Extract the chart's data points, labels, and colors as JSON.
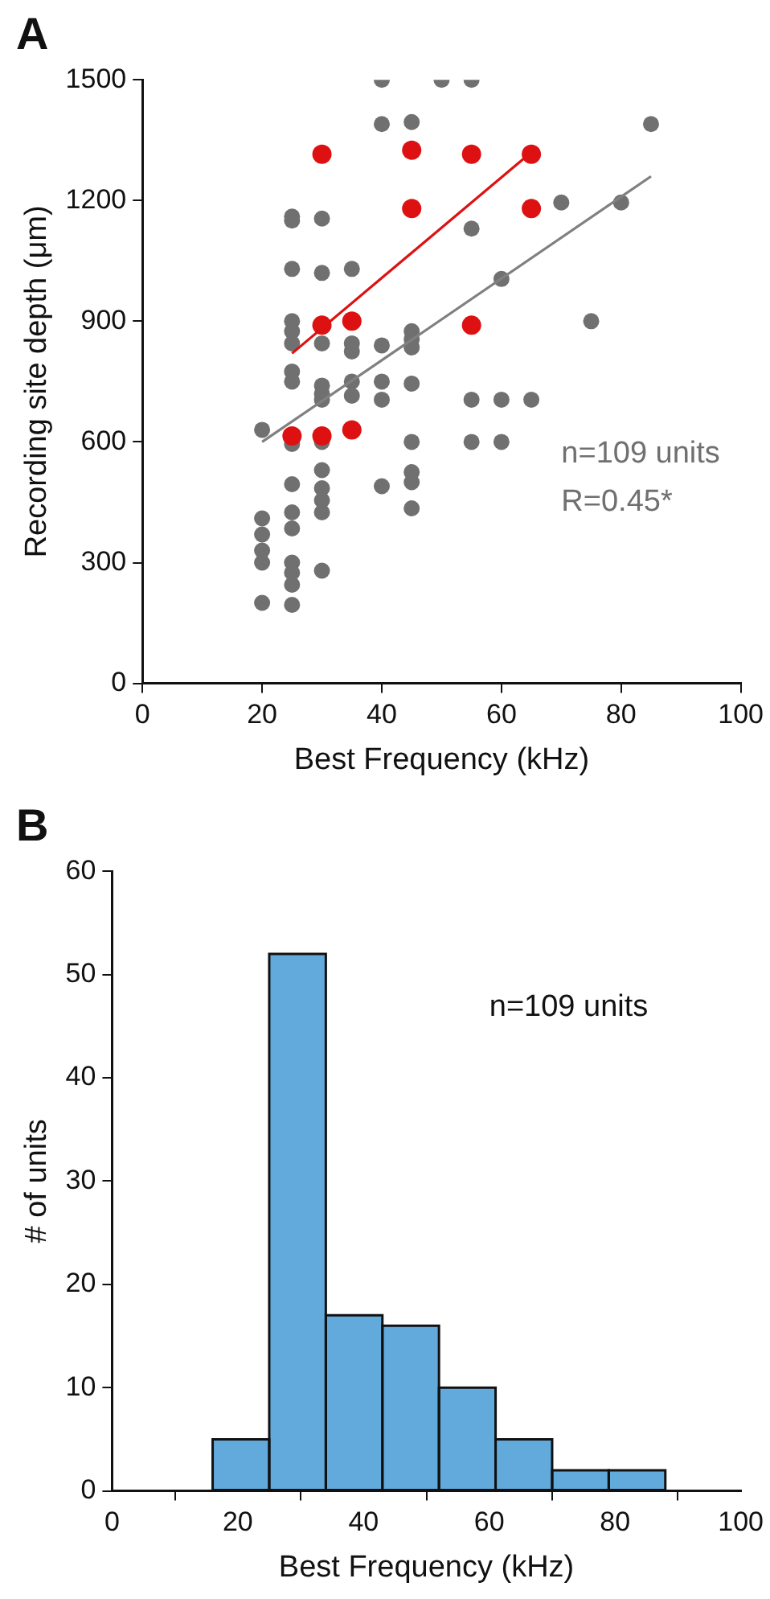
{
  "chart_data": [
    {
      "type": "scatter",
      "title": "A",
      "xlabel": "Best Frequency (kHz)",
      "ylabel": "Recording site depth (μm)",
      "xlim": [
        0,
        100
      ],
      "xticks": [
        0,
        20,
        40,
        60,
        80,
        100
      ],
      "ylim": [
        0,
        1500
      ],
      "yticks": [
        0,
        300,
        600,
        900,
        1200,
        1500
      ],
      "grid": false,
      "marker": "circle",
      "series": [
        {
          "color": "#707070",
          "x": [
            20,
            20,
            20,
            20,
            20,
            20,
            25,
            25,
            25,
            25,
            25,
            25,
            25,
            25,
            25,
            25,
            25,
            25,
            25,
            25,
            25,
            25,
            30,
            30,
            30,
            30,
            30,
            30,
            30,
            30,
            30,
            30,
            30,
            30,
            35,
            35,
            35,
            35,
            35,
            40,
            40,
            40,
            40,
            40,
            40,
            45,
            45,
            45,
            45,
            45,
            45,
            45,
            45,
            45,
            50,
            55,
            55,
            55,
            55,
            60,
            60,
            60,
            65,
            70,
            75,
            80,
            85
          ],
          "values": [
            630,
            410,
            370,
            330,
            300,
            200,
            1150,
            1030,
            900,
            875,
            845,
            775,
            750,
            595,
            495,
            425,
            385,
            300,
            275,
            245,
            195,
            1160,
            1155,
            1020,
            845,
            740,
            720,
            705,
            600,
            530,
            485,
            455,
            425,
            280,
            1030,
            845,
            825,
            750,
            715,
            1500,
            1390,
            840,
            750,
            705,
            490,
            1395,
            875,
            855,
            835,
            745,
            600,
            525,
            500,
            435,
            1500,
            1500,
            1130,
            705,
            600,
            1005,
            705,
            600,
            705,
            1195,
            900,
            1195,
            1390
          ]
        },
        {
          "color": "#dd1111",
          "x": [
            25,
            30,
            30,
            30,
            35,
            35,
            45,
            45,
            55,
            55,
            65,
            65
          ],
          "values": [
            615,
            1315,
            890,
            615,
            900,
            630,
            1325,
            1180,
            1315,
            890,
            1315,
            1180
          ]
        },
        {
          "type": "line",
          "color": "#dd1111",
          "line_style": "solid",
          "marker": "none",
          "x": [
            25,
            65
          ],
          "values": [
            820,
            1320
          ]
        },
        {
          "type": "line",
          "color": "#808080",
          "line_style": "solid",
          "marker": "none",
          "x": [
            20,
            85
          ],
          "values": [
            600,
            1260
          ]
        }
      ],
      "annotations": [
        "n=109 units",
        "R=0.45*"
      ]
    },
    {
      "type": "histogram",
      "title": "B",
      "xlabel": "Best Frequency (kHz)",
      "ylabel": "# of units",
      "xlim": [
        0,
        100
      ],
      "xticks": [
        0,
        20,
        40,
        60,
        80,
        100
      ],
      "ylim": [
        0,
        60
      ],
      "yticks": [
        0,
        10,
        20,
        30,
        40,
        50,
        60
      ],
      "grid": false,
      "color": "#62aadc",
      "bins": [
        16,
        25,
        34,
        43,
        52,
        61,
        70,
        79,
        88
      ],
      "values": [
        5,
        52,
        17,
        16,
        10,
        5,
        2,
        2
      ],
      "annotations": [
        "n=109 units"
      ]
    }
  ]
}
